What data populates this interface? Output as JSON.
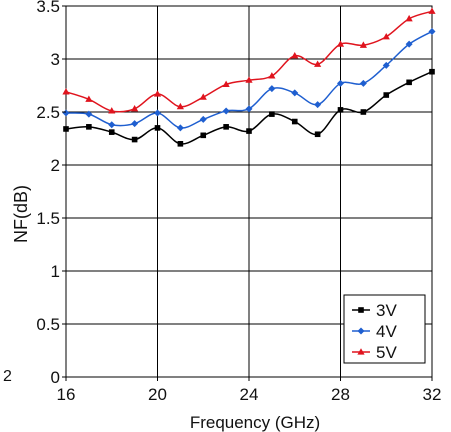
{
  "chart_data": {
    "type": "line",
    "xlabel": "Frequency (GHz)",
    "ylabel": "NF(dB)",
    "xlim": [
      16,
      32
    ],
    "ylim": [
      0,
      3.5
    ],
    "xticks": [
      16,
      20,
      24,
      28,
      32
    ],
    "yticks": [
      0,
      0.5,
      1,
      1.5,
      2,
      2.5,
      3,
      3.5
    ],
    "xtick_labels": [
      "16",
      "20",
      "24",
      "28",
      "32"
    ],
    "ytick_labels": [
      "0",
      "0.5",
      "1",
      "1.5",
      "2",
      "2.5",
      "3",
      "3.5"
    ],
    "grid": true,
    "legend_position": "bottom-right",
    "x": [
      16,
      17,
      18,
      19,
      20,
      21,
      22,
      23,
      24,
      25,
      26,
      27,
      28,
      29,
      30,
      31,
      32
    ],
    "series": [
      {
        "name": "3V",
        "color": "#000000",
        "marker": "square",
        "values": [
          2.34,
          2.36,
          2.31,
          2.24,
          2.35,
          2.2,
          2.28,
          2.36,
          2.32,
          2.48,
          2.41,
          2.29,
          2.52,
          2.5,
          2.66,
          2.78,
          2.88
        ]
      },
      {
        "name": "4V",
        "color": "#1f5fd0",
        "marker": "diamond",
        "values": [
          2.49,
          2.48,
          2.38,
          2.39,
          2.49,
          2.35,
          2.43,
          2.51,
          2.53,
          2.72,
          2.68,
          2.57,
          2.77,
          2.77,
          2.94,
          3.14,
          3.26
        ]
      },
      {
        "name": "5V",
        "color": "#e0141e",
        "marker": "triangle",
        "values": [
          2.69,
          2.62,
          2.51,
          2.53,
          2.67,
          2.55,
          2.64,
          2.76,
          2.8,
          2.84,
          3.03,
          2.95,
          3.14,
          3.13,
          3.21,
          3.38,
          3.45
        ]
      }
    ],
    "stray_label": "2"
  }
}
